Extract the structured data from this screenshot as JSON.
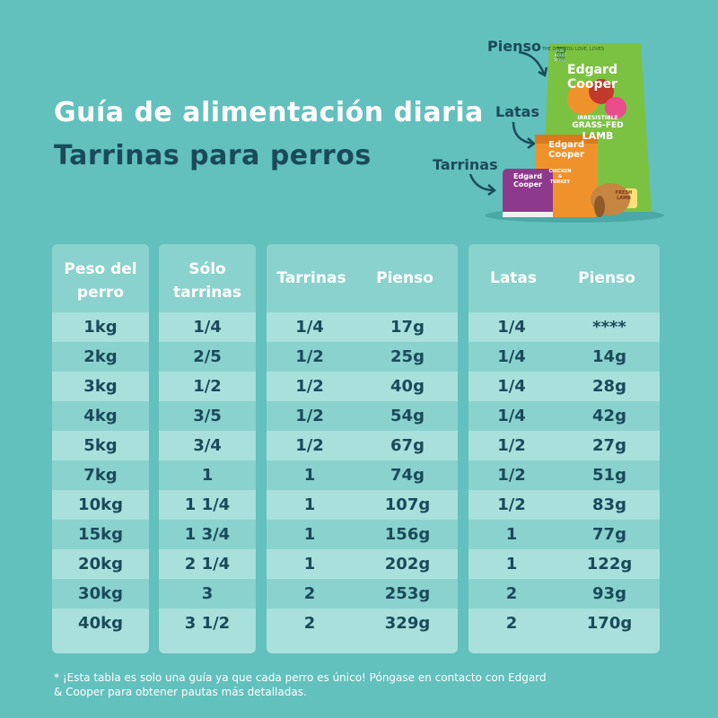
{
  "title": {
    "line1": "Guía de alimentación diaria",
    "line2": "Tarrinas para perros"
  },
  "product_labels": {
    "pienso": "Pienso",
    "latas": "Latas",
    "tarrinas": "Tarrinas"
  },
  "bag": {
    "top": "THE DOG YOU LOVE, LOVES",
    "badge": "FOR ADULT DOGS",
    "brand1": "Edgard",
    "brand2": "Cooper",
    "line1": "IRRESISTIBLE",
    "line2": "GRASS-FED",
    "line3": "LAMB",
    "tag": "FRESH LAMB"
  },
  "can": {
    "brand1": "Edgard",
    "brand2": "Cooper",
    "line1": "CHICKEN",
    "line2": "& TURKEY"
  },
  "tray": {
    "brand1": "Edgard",
    "brand2": "Cooper"
  },
  "table": {
    "headers": {
      "weight_line1": "Peso del",
      "weight_line2": "perro",
      "solo_line1": "Sólo",
      "solo_line2": "tarrinas",
      "tarrinas": "Tarrinas",
      "pienso1": "Pienso",
      "latas": "Latas",
      "pienso2": "Pienso"
    },
    "rows": [
      {
        "peso": "1kg",
        "solo": "1/4",
        "tarrinas": "1/4",
        "pienso1": "17g",
        "latas": "1/4",
        "pienso2": "****"
      },
      {
        "peso": "2kg",
        "solo": "2/5",
        "tarrinas": "1/2",
        "pienso1": "25g",
        "latas": "1/4",
        "pienso2": "14g"
      },
      {
        "peso": "3kg",
        "solo": "1/2",
        "tarrinas": "1/2",
        "pienso1": "40g",
        "latas": "1/4",
        "pienso2": "28g"
      },
      {
        "peso": "4kg",
        "solo": "3/5",
        "tarrinas": "1/2",
        "pienso1": "54g",
        "latas": "1/4",
        "pienso2": "42g"
      },
      {
        "peso": "5kg",
        "solo": "3/4",
        "tarrinas": "1/2",
        "pienso1": "67g",
        "latas": "1/2",
        "pienso2": "27g"
      },
      {
        "peso": "7kg",
        "solo": "1",
        "tarrinas": "1",
        "pienso1": "74g",
        "latas": "1/2",
        "pienso2": "51g"
      },
      {
        "peso": "10kg",
        "solo": "1 1/4",
        "tarrinas": "1",
        "pienso1": "107g",
        "latas": "1/2",
        "pienso2": "83g"
      },
      {
        "peso": "15kg",
        "solo": "1 3/4",
        "tarrinas": "1",
        "pienso1": "156g",
        "latas": "1",
        "pienso2": "77g"
      },
      {
        "peso": "20kg",
        "solo": "2 1/4",
        "tarrinas": "1",
        "pienso1": "202g",
        "latas": "1",
        "pienso2": "122g"
      },
      {
        "peso": "30kg",
        "solo": "3",
        "tarrinas": "2",
        "pienso1": "253g",
        "latas": "2",
        "pienso2": "93g"
      },
      {
        "peso": "40kg",
        "solo": "3 1/2",
        "tarrinas": "2",
        "pienso1": "329g",
        "latas": "2",
        "pienso2": "170g"
      }
    ]
  },
  "footnote": "* ¡Esta tabla es solo una guía ya que cada perro es único! Póngase en contacto con Edgard & Cooper para obtener pautas más detalladas.",
  "colors": {
    "background": "#62c0bd",
    "panel": "#a9e0dc",
    "panel_stripe": "#8ad2cd",
    "dark_text": "#1a4a5a",
    "bag_green": "#7cc242",
    "can_orange": "#f0922b",
    "tray_purple": "#8e3a8c"
  }
}
